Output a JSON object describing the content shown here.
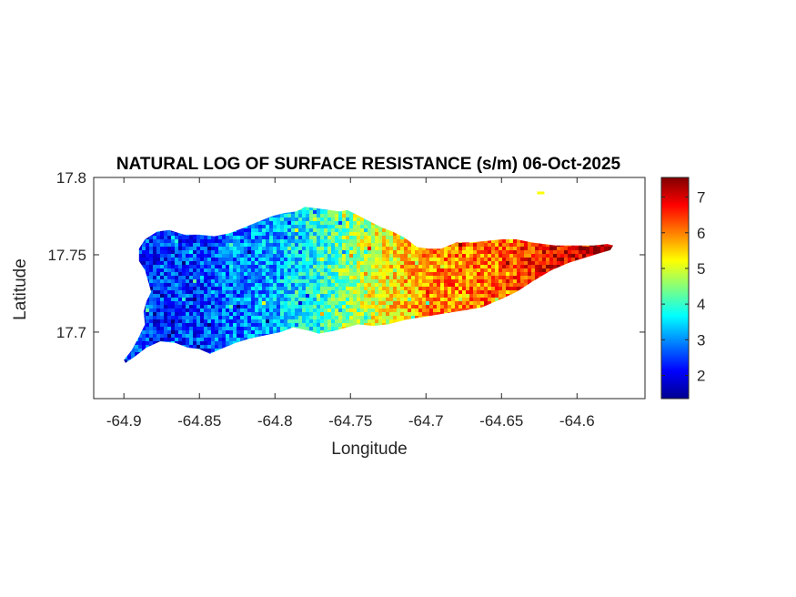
{
  "chart_data": {
    "type": "heatmap",
    "title": "NATURAL LOG OF SURFACE RESISTANCE (s/m) 06-Oct-2025",
    "xlabel": "Longitude",
    "ylabel": "Latitude",
    "xlim": [
      -64.92,
      -64.555
    ],
    "ylim": [
      17.657,
      17.8
    ],
    "xticks": [
      -64.9,
      -64.85,
      -64.8,
      -64.75,
      -64.7,
      -64.65,
      -64.6
    ],
    "xtick_labels": [
      "-64.9",
      "-64.85",
      "-64.8",
      "-64.75",
      "-64.7",
      "-64.65",
      "-64.6"
    ],
    "yticks": [
      17.7,
      17.75,
      17.8
    ],
    "ytick_labels": [
      "17.7",
      "17.75",
      "17.8"
    ],
    "colormap": "jet",
    "clim": [
      1.35,
      7.55
    ],
    "colorbar_ticks": [
      2,
      3,
      4,
      5,
      6,
      7
    ],
    "colorbar_tick_labels": [
      "2",
      "3",
      "4",
      "5",
      "6",
      "7"
    ],
    "island_outline_lonlat": [
      [
        -64.899,
        17.68
      ],
      [
        -64.893,
        17.684
      ],
      [
        -64.885,
        17.69
      ],
      [
        -64.876,
        17.694
      ],
      [
        -64.866,
        17.693
      ],
      [
        -64.858,
        17.69
      ],
      [
        -64.85,
        17.689
      ],
      [
        -64.843,
        17.686
      ],
      [
        -64.836,
        17.689
      ],
      [
        -64.826,
        17.693
      ],
      [
        -64.816,
        17.696
      ],
      [
        -64.806,
        17.698
      ],
      [
        -64.796,
        17.7
      ],
      [
        -64.788,
        17.703
      ],
      [
        -64.778,
        17.701
      ],
      [
        -64.771,
        17.699
      ],
      [
        -64.765,
        17.7
      ],
      [
        -64.76,
        17.701
      ],
      [
        -64.752,
        17.703
      ],
      [
        -64.745,
        17.705
      ],
      [
        -64.735,
        17.704
      ],
      [
        -64.725,
        17.705
      ],
      [
        -64.713,
        17.708
      ],
      [
        -64.7,
        17.71
      ],
      [
        -64.688,
        17.712
      ],
      [
        -64.675,
        17.714
      ],
      [
        -64.663,
        17.716
      ],
      [
        -64.651,
        17.721
      ],
      [
        -64.64,
        17.726
      ],
      [
        -64.629,
        17.733
      ],
      [
        -64.617,
        17.74
      ],
      [
        -64.605,
        17.745
      ],
      [
        -64.595,
        17.748
      ],
      [
        -64.585,
        17.751
      ],
      [
        -64.578,
        17.753
      ],
      [
        -64.576,
        17.756
      ],
      [
        -64.58,
        17.757
      ],
      [
        -64.589,
        17.756
      ],
      [
        -64.598,
        17.756
      ],
      [
        -64.606,
        17.756
      ],
      [
        -64.614,
        17.756
      ],
      [
        -64.622,
        17.757
      ],
      [
        -64.63,
        17.758
      ],
      [
        -64.64,
        17.76
      ],
      [
        -64.65,
        17.76
      ],
      [
        -64.66,
        17.759
      ],
      [
        -64.67,
        17.758
      ],
      [
        -64.68,
        17.758
      ],
      [
        -64.69,
        17.754
      ],
      [
        -64.698,
        17.754
      ],
      [
        -64.706,
        17.755
      ],
      [
        -64.714,
        17.761
      ],
      [
        -64.722,
        17.765
      ],
      [
        -64.73,
        17.768
      ],
      [
        -64.738,
        17.772
      ],
      [
        -64.746,
        17.776
      ],
      [
        -64.752,
        17.779
      ],
      [
        -64.757,
        17.778
      ],
      [
        -64.764,
        17.779
      ],
      [
        -64.772,
        17.78
      ],
      [
        -64.78,
        17.781
      ],
      [
        -64.786,
        17.778
      ],
      [
        -64.794,
        17.777
      ],
      [
        -64.802,
        17.775
      ],
      [
        -64.812,
        17.771
      ],
      [
        -64.822,
        17.767
      ],
      [
        -64.83,
        17.764
      ],
      [
        -64.84,
        17.762
      ],
      [
        -64.85,
        17.763
      ],
      [
        -64.86,
        17.763
      ],
      [
        -64.87,
        17.766
      ],
      [
        -64.878,
        17.765
      ],
      [
        -64.886,
        17.76
      ],
      [
        -64.89,
        17.754
      ],
      [
        -64.89,
        17.746
      ],
      [
        -64.886,
        17.74
      ],
      [
        -64.884,
        17.733
      ],
      [
        -64.882,
        17.726
      ],
      [
        -64.885,
        17.72
      ],
      [
        -64.887,
        17.713
      ],
      [
        -64.886,
        17.705
      ],
      [
        -64.89,
        17.697
      ],
      [
        -64.895,
        17.688
      ],
      [
        -64.9,
        17.682
      ]
    ],
    "value_trend_by_longitude": [
      {
        "lon": -64.9,
        "value": 2.4
      },
      {
        "lon": -64.85,
        "value": 2.5
      },
      {
        "lon": -64.8,
        "value": 3.2
      },
      {
        "lon": -64.77,
        "value": 3.9
      },
      {
        "lon": -64.75,
        "value": 4.6
      },
      {
        "lon": -64.72,
        "value": 5.5
      },
      {
        "lon": -64.7,
        "value": 5.9
      },
      {
        "lon": -64.65,
        "value": 6.2
      },
      {
        "lon": -64.62,
        "value": 6.8
      },
      {
        "lon": -64.58,
        "value": 7.4
      }
    ],
    "outliers": [
      {
        "lon": -64.624,
        "lat": 17.79,
        "value": 5.2
      }
    ],
    "grid": false
  }
}
